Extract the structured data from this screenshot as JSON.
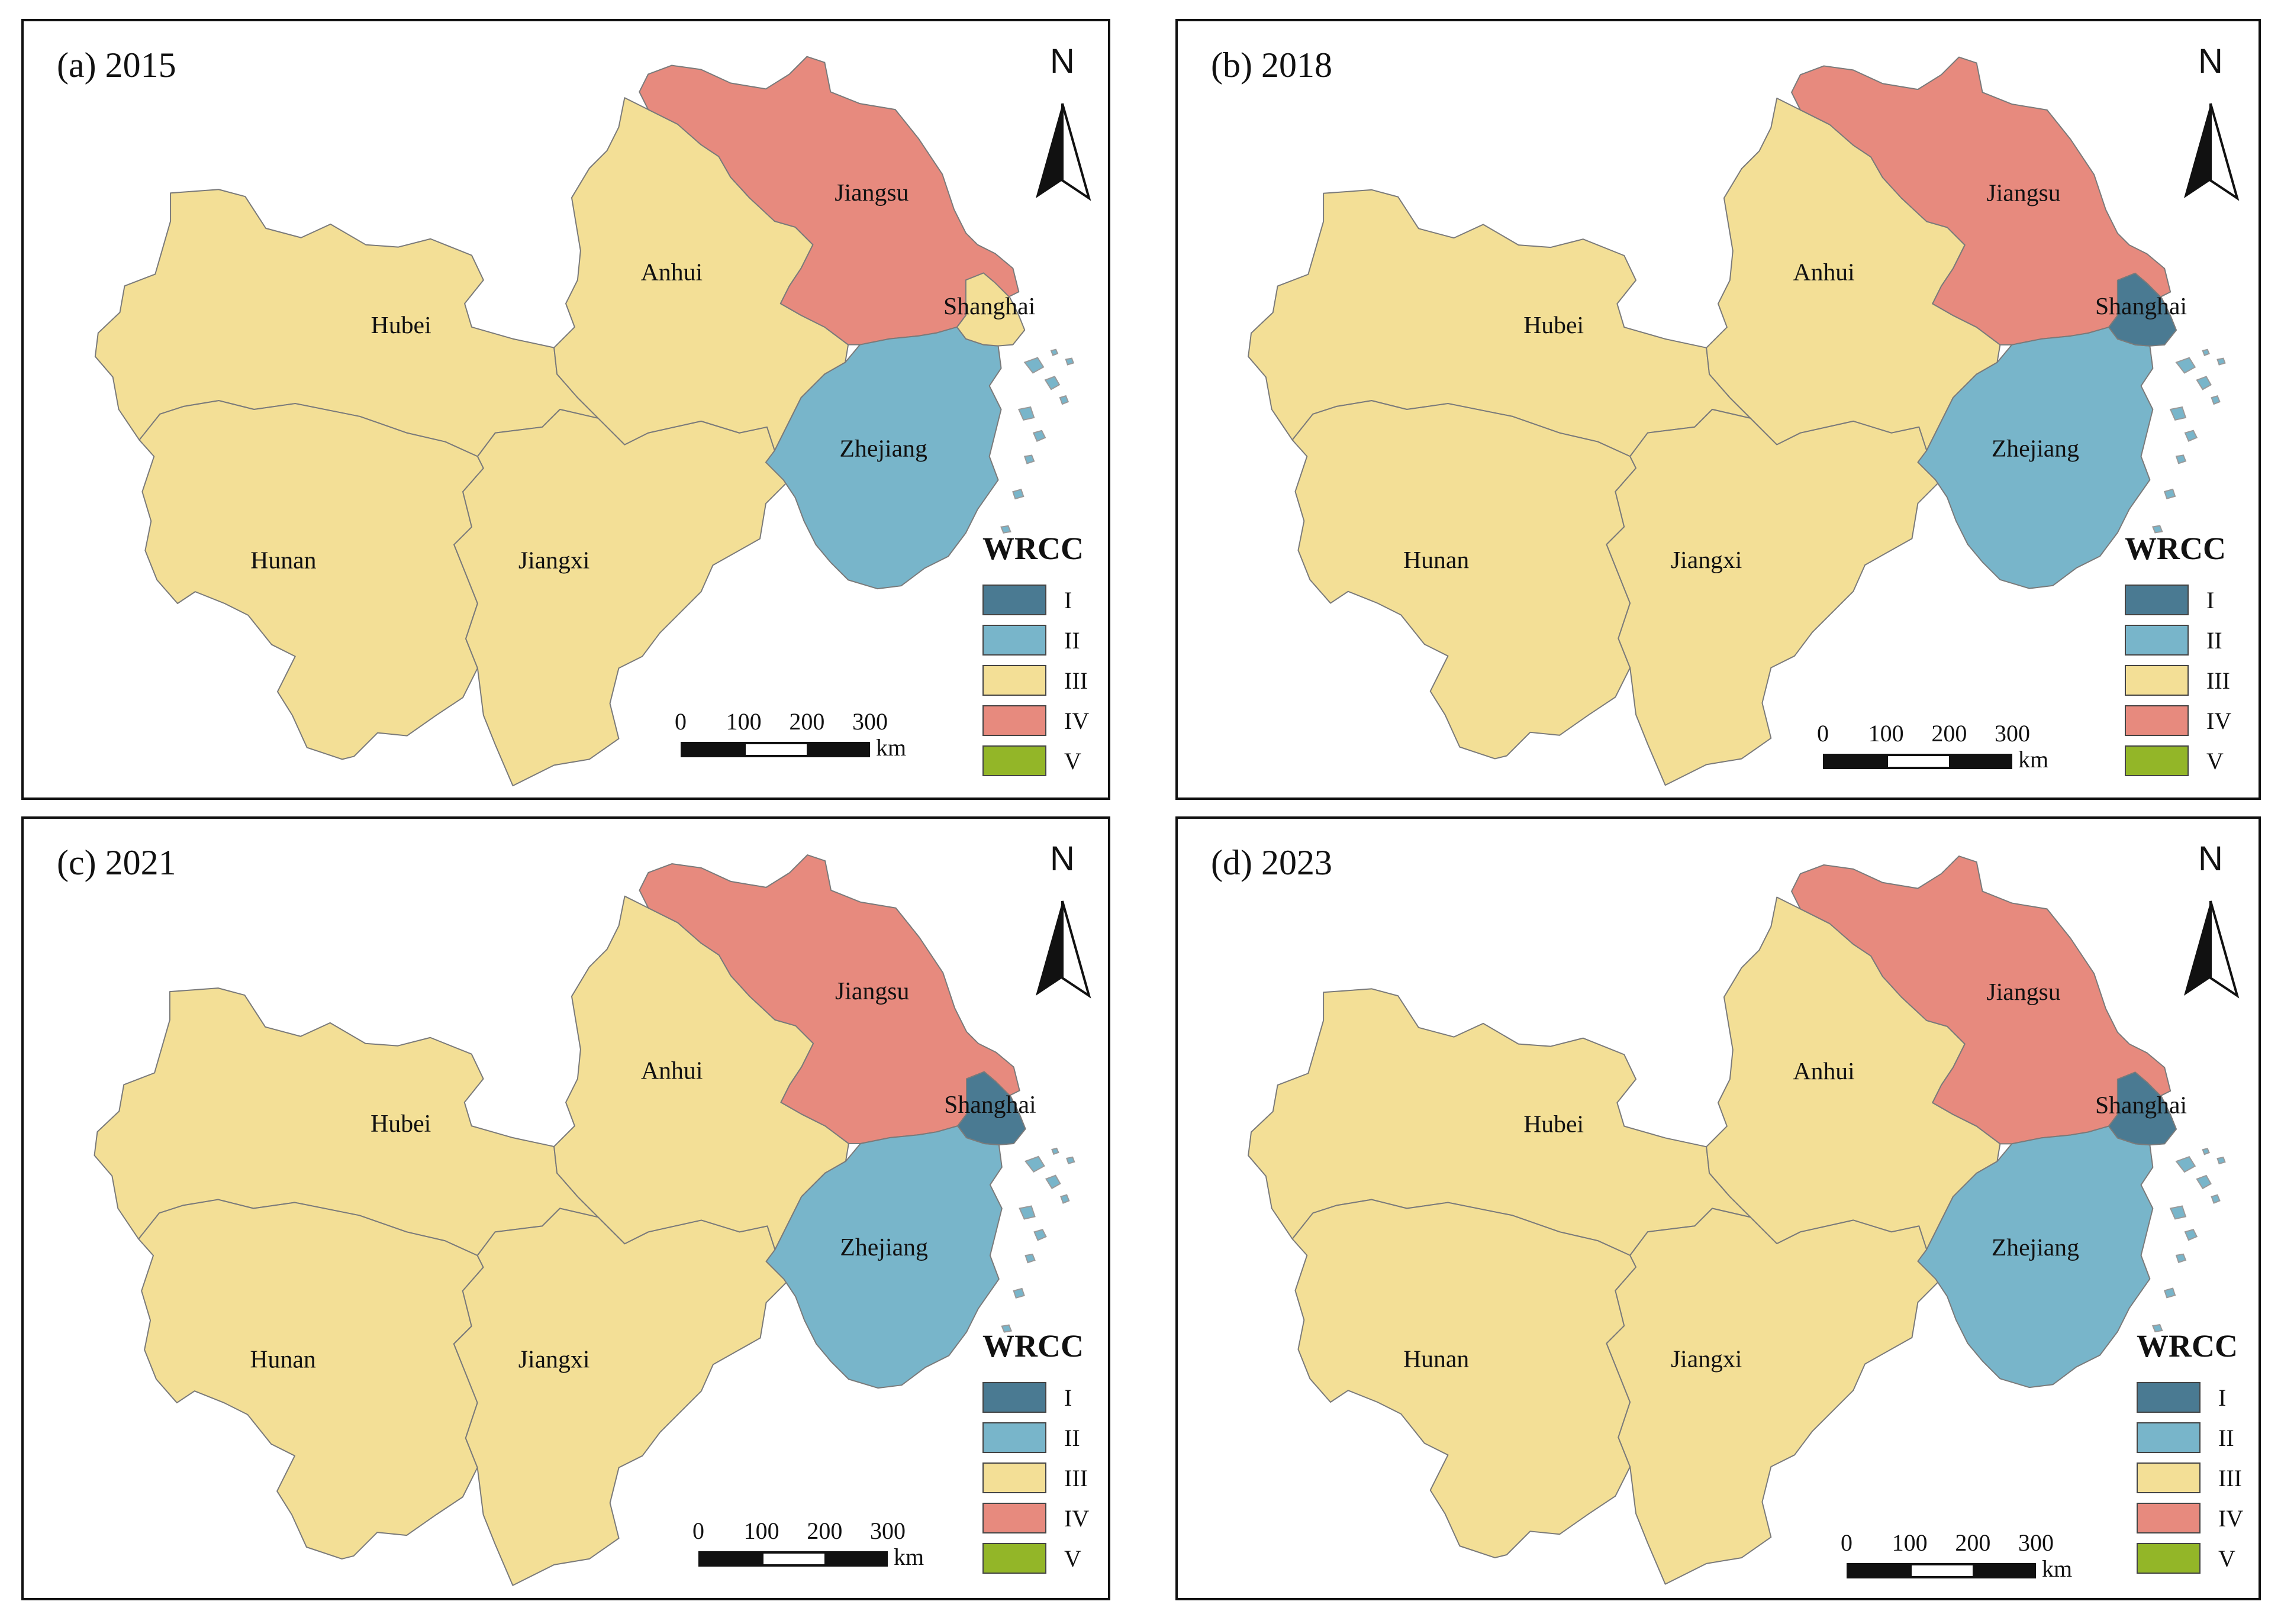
{
  "colors": {
    "I": "#4a7a92",
    "II": "#78b5ca",
    "III": "#f3df96",
    "IV": "#e78a7e",
    "V": "#93b628",
    "border": "#7a7a7a",
    "island": "#9a9a9a"
  },
  "legend": {
    "title": "WRCC",
    "classes": [
      {
        "label": "I",
        "color": "#4a7a92"
      },
      {
        "label": "II",
        "color": "#78b5ca"
      },
      {
        "label": "III",
        "color": "#f3df96"
      },
      {
        "label": "IV",
        "color": "#e78a7e"
      },
      {
        "label": "V",
        "color": "#93b628"
      }
    ]
  },
  "north_arrow": {
    "letter": "N",
    "icon": "north-arrow-icon"
  },
  "scale_bar": {
    "ticks": [
      "0",
      "100",
      "200",
      "300"
    ],
    "unit": "km"
  },
  "province_names": {
    "anhui": "Anhui",
    "hubei": "Hubei",
    "hunan": "Hunan",
    "jiangxi": "Jiangxi",
    "jiangsu": "Jiangsu",
    "zhejiang": "Zhejiang",
    "shanghai": "Shanghai"
  },
  "panels": [
    {
      "title": "(a) 2015",
      "year": 2015,
      "classes": {
        "anhui": "III",
        "hubei": "III",
        "hunan": "III",
        "jiangxi": "III",
        "jiangsu": "IV",
        "zhejiang": "II",
        "shanghai": "III"
      }
    },
    {
      "title": "(b) 2018",
      "year": 2018,
      "classes": {
        "anhui": "III",
        "hubei": "III",
        "hunan": "III",
        "jiangxi": "III",
        "jiangsu": "IV",
        "zhejiang": "II",
        "shanghai": "I"
      }
    },
    {
      "title": "(c) 2021",
      "year": 2021,
      "classes": {
        "anhui": "III",
        "hubei": "III",
        "hunan": "III",
        "jiangxi": "III",
        "jiangsu": "IV",
        "zhejiang": "II",
        "shanghai": "I"
      }
    },
    {
      "title": "(d) 2023",
      "year": 2023,
      "classes": {
        "anhui": "III",
        "hubei": "III",
        "hunan": "III",
        "jiangxi": "III",
        "jiangsu": "IV",
        "zhejiang": "II",
        "shanghai": "I"
      }
    }
  ]
}
